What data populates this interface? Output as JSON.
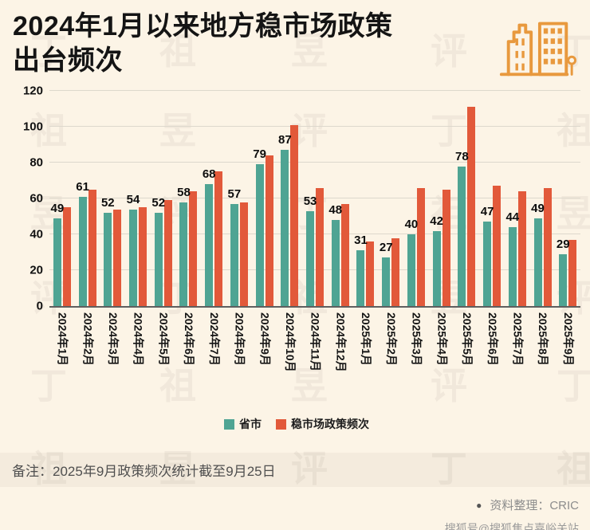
{
  "header": {
    "title_line1": "2024年1月以来地方稳市场政策",
    "title_line2": "出台频次"
  },
  "chart_data": {
    "type": "bar",
    "title": "2024年1月以来地方稳市场政策出台频次",
    "categories": [
      "2024年1月",
      "2024年2月",
      "2024年3月",
      "2024年4月",
      "2024年5月",
      "2024年6月",
      "2024年7月",
      "2024年8月",
      "2024年9月",
      "2024年10月",
      "2024年11月",
      "2024年12月",
      "2025年1月",
      "2025年2月",
      "2025年3月",
      "2025年4月",
      "2025年5月",
      "2025年6月",
      "2025年7月",
      "2025年8月",
      "2025年9月"
    ],
    "series": [
      {
        "name": "省市",
        "color": "#4fa493",
        "data_labels": true,
        "values": [
          49,
          61,
          52,
          54,
          52,
          58,
          68,
          57,
          79,
          87,
          53,
          48,
          31,
          27,
          40,
          42,
          78,
          47,
          44,
          49,
          29
        ]
      },
      {
        "name": "稳市场政策频次",
        "color": "#e2593a",
        "data_labels": false,
        "values": [
          55,
          65,
          54,
          55,
          59,
          64,
          75,
          58,
          84,
          101,
          66,
          57,
          36,
          38,
          66,
          65,
          111,
          67,
          64,
          66,
          37
        ]
      }
    ],
    "ylim": [
      0,
      120
    ],
    "yticks": [
      0,
      20,
      40,
      60,
      80,
      100,
      120
    ],
    "grid": true,
    "legend_position": "bottom"
  },
  "note": "备注：2025年9月政策频次统计截至9月25日",
  "footer": {
    "bullet": "●",
    "source": "资料整理：CRIC",
    "watermark": "搜狐号@搜狐焦点嘉峪关站"
  },
  "watermark": {
    "chars": [
      "丁",
      "祖",
      "昱",
      "评"
    ]
  },
  "colors": {
    "background": "#fcf4e6",
    "teal": "#4fa493",
    "orange": "#e2593a",
    "icon": "#e8993e",
    "title_text": "#141414"
  }
}
